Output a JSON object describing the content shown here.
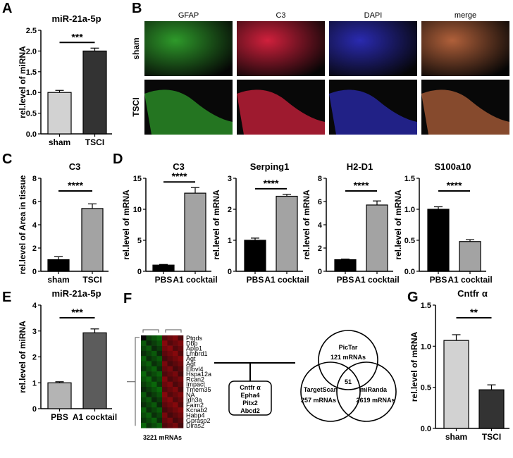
{
  "panel_labels": [
    "A",
    "B",
    "C",
    "D",
    "E",
    "F",
    "G"
  ],
  "microscopy": {
    "columns": [
      "GFAP",
      "C3",
      "DAPI",
      "merge"
    ],
    "rows": [
      "sham",
      "TSCI"
    ],
    "colors": {
      "GFAP": "#2e9a2a",
      "C3": "#d0203c",
      "DAPI": "#2a2ab0",
      "merge": "#b0603a"
    }
  },
  "chart_data": [
    {
      "id": "A",
      "type": "bar",
      "title": "miR-21a-5p",
      "ylabel": "rel.level of miRNA",
      "categories": [
        "sham",
        "TSCI"
      ],
      "values": [
        1.0,
        2.0
      ],
      "errors": [
        0.05,
        0.07
      ],
      "colors": [
        "#d2d2d2",
        "#333333"
      ],
      "ylim": [
        0,
        2.5
      ],
      "yticks": [
        "0.0",
        "0.5",
        "1.0",
        "1.5",
        "2.0",
        "2.5"
      ],
      "significance": "***"
    },
    {
      "id": "C",
      "type": "bar",
      "title": "C3",
      "ylabel": "rel.level of Area in tissue",
      "categories": [
        "sham",
        "TSCI"
      ],
      "values": [
        1.0,
        5.4
      ],
      "errors": [
        0.25,
        0.4
      ],
      "colors": [
        "#000000",
        "#a3a3a3"
      ],
      "ylim": [
        0,
        8
      ],
      "yticks": [
        "0",
        "2",
        "4",
        "6",
        "8"
      ],
      "significance": "****"
    },
    {
      "id": "D1",
      "type": "bar",
      "title": "C3",
      "ylabel": "rel.level of mRNA",
      "categories": [
        "PBS",
        "A1 cocktail"
      ],
      "values": [
        1.0,
        12.6
      ],
      "errors": [
        0.1,
        0.9
      ],
      "colors": [
        "#000000",
        "#a3a3a3"
      ],
      "ylim": [
        0,
        15
      ],
      "yticks": [
        "0",
        "5",
        "10",
        "15"
      ],
      "significance": "****"
    },
    {
      "id": "D2",
      "type": "bar",
      "title": "Serping1",
      "ylabel": "rel.level of mRNA",
      "categories": [
        "PBS",
        "A1 cocktail"
      ],
      "values": [
        1.0,
        2.42
      ],
      "errors": [
        0.07,
        0.06
      ],
      "colors": [
        "#000000",
        "#a3a3a3"
      ],
      "ylim": [
        0,
        3
      ],
      "yticks": [
        "0",
        "1",
        "2",
        "3"
      ],
      "significance": "****"
    },
    {
      "id": "D3",
      "type": "bar",
      "title": "H2-D1",
      "ylabel": "rel.level of mRNA",
      "categories": [
        "PBS",
        "A1 cocktail"
      ],
      "values": [
        1.0,
        5.7
      ],
      "errors": [
        0.05,
        0.35
      ],
      "colors": [
        "#000000",
        "#a3a3a3"
      ],
      "ylim": [
        0,
        8
      ],
      "yticks": [
        "0",
        "2",
        "4",
        "6",
        "8"
      ],
      "significance": "****"
    },
    {
      "id": "D4",
      "type": "bar",
      "title": "S100a10",
      "ylabel": "rel.level of mRNA",
      "categories": [
        "PBS",
        "A1 cocktail"
      ],
      "values": [
        1.0,
        0.48
      ],
      "errors": [
        0.04,
        0.03
      ],
      "colors": [
        "#000000",
        "#a3a3a3"
      ],
      "ylim": [
        0,
        1.5
      ],
      "yticks": [
        "0.0",
        "0.5",
        "1.0",
        "1.5"
      ],
      "significance": "****"
    },
    {
      "id": "E",
      "type": "bar",
      "title": "miR-21a-5p",
      "ylabel": "rel.level of miRNA",
      "categories": [
        "PBS",
        "A1 cocktail"
      ],
      "values": [
        1.0,
        2.93
      ],
      "errors": [
        0.04,
        0.15
      ],
      "colors": [
        "#b4b4b4",
        "#5c5c5c"
      ],
      "ylim": [
        0,
        4
      ],
      "yticks": [
        "0",
        "1",
        "2",
        "3",
        "4"
      ],
      "significance": "***"
    },
    {
      "id": "G",
      "type": "bar",
      "title": "Cntfr α",
      "ylabel": "rel.level of mRNA",
      "categories": [
        "sham",
        "TSCI"
      ],
      "values": [
        1.07,
        0.47
      ],
      "errors": [
        0.07,
        0.06
      ],
      "colors": [
        "#d2d2d2",
        "#333333"
      ],
      "ylim": [
        0,
        1.5
      ],
      "yticks": [
        "0.0",
        "0.5",
        "1.0",
        "1.5"
      ],
      "significance": "**"
    }
  ],
  "heatmap": {
    "genes": [
      "Ptgds",
      "Dbp",
      "Aplp1",
      "Lmbrd1",
      "Agt",
      "Agt",
      "Elovl4",
      "Hspa12a",
      "Rcan2",
      "Impact",
      "Tmem35",
      "NA",
      "Idh3a",
      "Faim2",
      "Kcnab2",
      "Habp4",
      "Gprasp2",
      "Diras2"
    ],
    "caption": "3221 mRNAs",
    "low_color": "#1f8a1f",
    "high_color": "#8a0f14"
  },
  "targets": [
    "Cntfr α",
    "Epha4",
    "Pitx2",
    "Abcd2"
  ],
  "venn": {
    "sets": [
      {
        "name": "PicTar",
        "count": "121 mRNAs"
      },
      {
        "name": "TargetScan",
        "count": "257 mRNAs"
      },
      {
        "name": "miRanda",
        "count": "2619 mRNAs"
      }
    ],
    "intersection": "51"
  }
}
